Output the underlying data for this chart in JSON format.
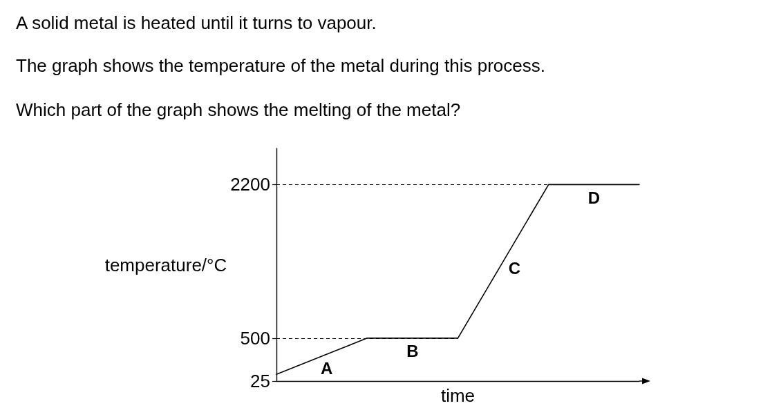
{
  "chart_data": {
    "type": "line",
    "title": "A solid metal is heated until it turns to vapour.",
    "subtitle": "The graph shows the temperature of the metal during this process.\nWhich part of the graph shows the melting of the metal?",
    "xlabel": "time",
    "ylabel": "temperature/°C",
    "categories": [
      null,
      null,
      null,
      null,
      null
    ],
    "series": [
      {
        "color": "#000000",
        "values": [
          100,
          500,
          500,
          2200,
          2200
        ]
      }
    ],
    "ylim": [
      25,
      2600
    ],
    "yticks": [
      25,
      500,
      2200
    ],
    "ref_lines": [
      {
        "axis": "y",
        "value": 500,
        "color": "#000000",
        "line_style": "dashed"
      },
      {
        "axis": "y",
        "value": 2200,
        "color": "#000000",
        "line_style": "dashed"
      }
    ],
    "annotations": [
      "A",
      "B",
      "C",
      "D"
    ],
    "marker": "none",
    "tick_labels": "y",
    "grid": false
  }
}
